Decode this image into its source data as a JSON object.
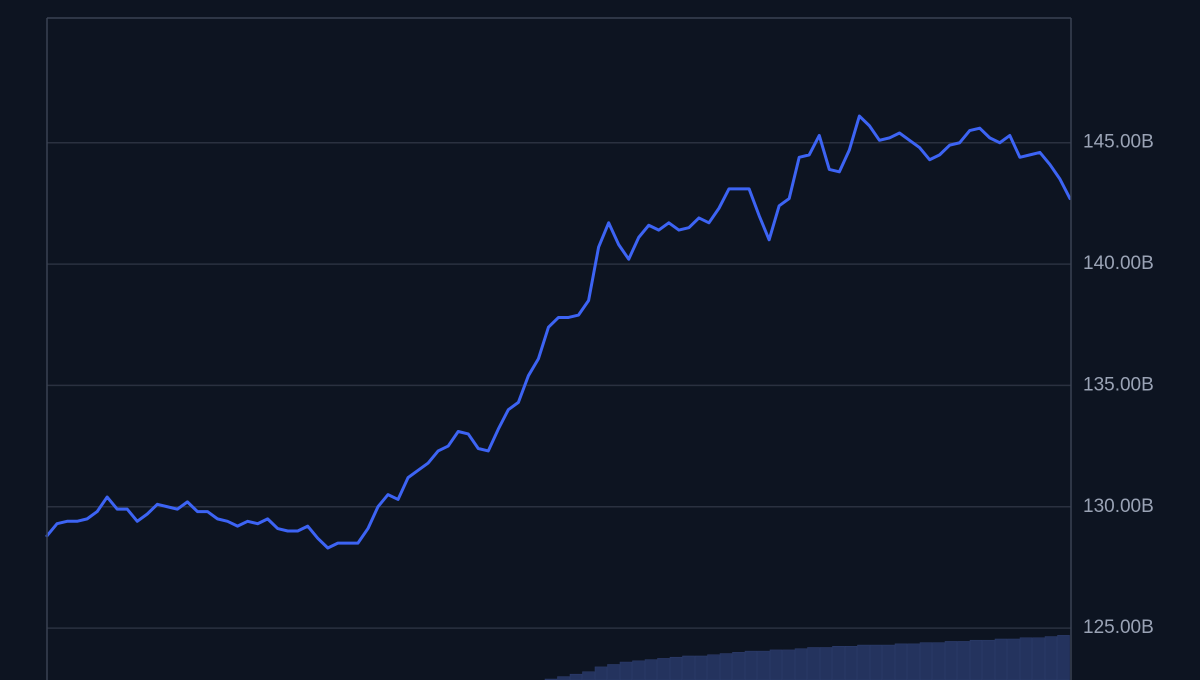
{
  "chart_data": {
    "type": "line",
    "color": "#3d64f4",
    "values": [
      128.8,
      129.3,
      129.4,
      129.4,
      129.5,
      129.8,
      130.4,
      129.9,
      129.9,
      129.4,
      129.7,
      130.1,
      130.0,
      129.9,
      130.2,
      129.8,
      129.8,
      129.5,
      129.4,
      129.2,
      129.4,
      129.3,
      129.5,
      129.1,
      129.0,
      129.0,
      129.2,
      128.7,
      128.3,
      128.5,
      128.5,
      128.5,
      129.1,
      130.0,
      130.5,
      130.3,
      131.2,
      131.5,
      131.8,
      132.3,
      132.5,
      133.1,
      133.0,
      132.4,
      132.3,
      133.2,
      134.0,
      134.3,
      135.4,
      136.1,
      137.4,
      137.8,
      137.8,
      137.9,
      138.5,
      140.7,
      141.7,
      140.8,
      140.2,
      141.1,
      141.6,
      141.4,
      141.7,
      141.4,
      141.5,
      141.9,
      141.7,
      142.3,
      143.1,
      143.1,
      143.1,
      142.0,
      141.0,
      142.4,
      142.7,
      144.4,
      144.5,
      145.3,
      143.9,
      143.8,
      144.7,
      146.1,
      145.7,
      145.1,
      145.2,
      145.4,
      145.1,
      144.8,
      144.3,
      144.5,
      144.9,
      145.0,
      145.5,
      145.6,
      145.2,
      145.0,
      145.3,
      144.4,
      144.5,
      144.6,
      144.1,
      143.5,
      142.7
    ],
    "bars": {
      "color": "#24335e",
      "values": [
        122.9,
        123.0,
        123.1,
        123.2,
        123.4,
        123.5,
        123.6,
        123.65,
        123.7,
        123.75,
        123.8,
        123.85,
        123.85,
        123.9,
        123.95,
        124.0,
        124.05,
        124.05,
        124.1,
        124.1,
        124.15,
        124.2,
        124.2,
        124.25,
        124.25,
        124.3,
        124.3,
        124.3,
        124.35,
        124.35,
        124.4,
        124.4,
        124.45,
        124.45,
        124.5,
        124.5,
        124.55,
        124.55,
        124.6,
        124.6,
        124.65,
        124.7
      ]
    },
    "ylim": [
      122.86,
      150.14
    ],
    "yticks": [
      {
        "value": 125,
        "label": "125.00B"
      },
      {
        "value": 130,
        "label": "130.00B"
      },
      {
        "value": 135,
        "label": "135.00B"
      },
      {
        "value": 140,
        "label": "140.00B"
      },
      {
        "value": 145,
        "label": "145.00B"
      }
    ],
    "grid": true
  }
}
